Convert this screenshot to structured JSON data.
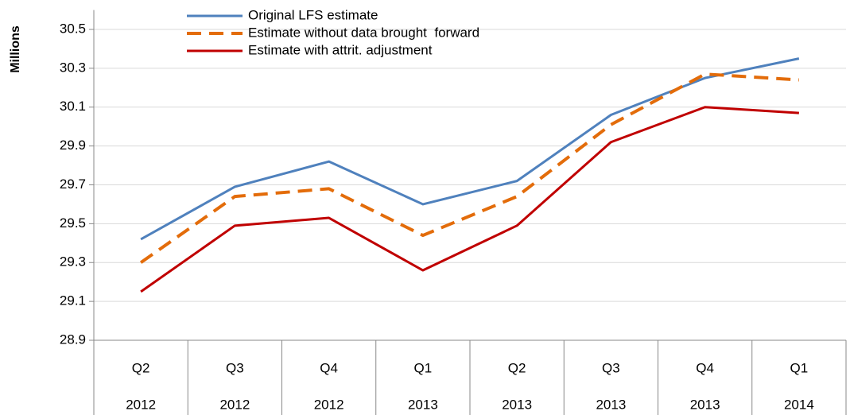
{
  "chart_data": {
    "type": "line",
    "y_label": "Millions",
    "categories": [
      "Q2",
      "Q3",
      "Q4",
      "Q1",
      "Q2",
      "Q3",
      "Q4",
      "Q1"
    ],
    "category_years": [
      "2012",
      "2012",
      "2012",
      "2013",
      "2013",
      "2013",
      "2013",
      "2014"
    ],
    "series": [
      {
        "name": "Original LFS estimate",
        "color": "#4f81bd",
        "dash": false,
        "values": [
          29.42,
          29.69,
          29.82,
          29.6,
          29.72,
          30.06,
          30.25,
          30.35
        ]
      },
      {
        "name": "Estimate without data brought  forward",
        "color": "#e36c0a",
        "dash": true,
        "values": [
          29.3,
          29.64,
          29.68,
          29.44,
          29.64,
          30.01,
          30.27,
          30.24
        ]
      },
      {
        "name": "Estimate with attrit. adjustment",
        "color": "#c00000",
        "dash": false,
        "values": [
          29.15,
          29.49,
          29.53,
          29.26,
          29.49,
          29.92,
          30.1,
          30.07
        ]
      }
    ],
    "ylim": [
      28.9,
      30.6
    ],
    "yticks": [
      28.9,
      29.1,
      29.3,
      29.5,
      29.7,
      29.9,
      30.1,
      30.3,
      30.5
    ],
    "grid": true,
    "legend": "top-left"
  }
}
